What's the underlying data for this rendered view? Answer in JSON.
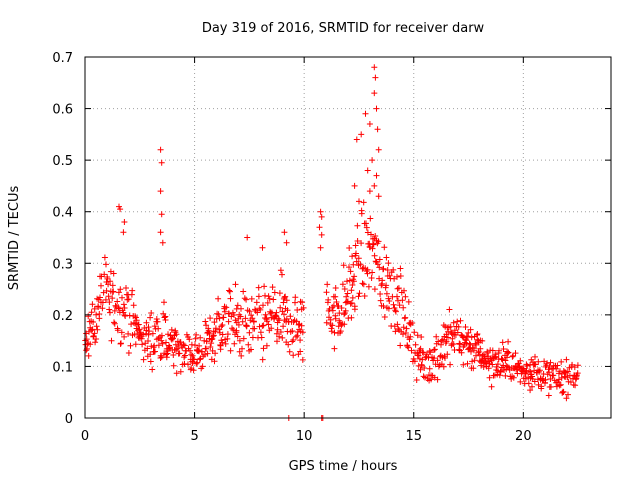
{
  "chart_data": {
    "type": "scatter",
    "title": "Day 319 of 2016, SRMTID for receiver darw",
    "xlabel": "GPS time / hours",
    "ylabel": "SRMTID / TECUs",
    "xlim": [
      0,
      24
    ],
    "ylim": [
      0,
      0.7
    ],
    "xticks": [
      0,
      5,
      10,
      15,
      20
    ],
    "xtick_labels": [
      "0",
      "5",
      "10",
      "15",
      "20"
    ],
    "yticks": [
      0,
      0.1,
      0.2,
      0.3,
      0.4,
      0.5,
      0.6,
      0.7
    ],
    "ytick_labels": [
      "0",
      "0.1",
      "0.2",
      "0.3",
      "0.4",
      "0.5",
      "0.6",
      "0.7"
    ],
    "grid": true,
    "marker": "+",
    "color": "#ff0000",
    "series": [
      {
        "name": "SRMTID",
        "profile_hours": [
          0.0,
          0.5,
          1.0,
          1.5,
          2.0,
          2.5,
          3.0,
          3.5,
          4.0,
          4.5,
          5.0,
          5.5,
          6.0,
          6.5,
          7.0,
          7.5,
          8.0,
          8.5,
          9.0,
          9.5,
          10.0,
          10.5,
          11.0,
          11.5,
          12.0,
          12.5,
          13.0,
          13.5,
          14.0,
          14.5,
          15.0,
          15.5,
          16.0,
          16.5,
          17.0,
          17.5,
          18.0,
          18.5,
          19.0,
          19.5,
          20.0,
          20.5,
          21.0,
          21.5,
          22.0,
          22.5
        ],
        "profile_median": [
          0.15,
          0.19,
          0.25,
          0.21,
          0.2,
          0.16,
          0.15,
          0.17,
          0.14,
          0.13,
          0.12,
          0.14,
          0.17,
          0.19,
          0.18,
          0.17,
          0.18,
          0.2,
          0.19,
          0.18,
          0.17,
          null,
          0.22,
          0.2,
          0.24,
          0.3,
          0.33,
          0.28,
          0.25,
          0.2,
          0.14,
          0.1,
          0.12,
          0.15,
          0.16,
          0.14,
          0.13,
          0.11,
          0.11,
          0.1,
          0.09,
          0.09,
          0.08,
          0.08,
          0.08,
          0.09
        ],
        "profile_spread": [
          0.04,
          0.06,
          0.07,
          0.06,
          0.06,
          0.05,
          0.05,
          0.06,
          0.05,
          0.04,
          0.04,
          0.05,
          0.06,
          0.07,
          0.07,
          0.06,
          0.07,
          0.07,
          0.07,
          0.07,
          0.06,
          null,
          0.06,
          0.06,
          0.07,
          0.08,
          0.09,
          0.08,
          0.07,
          0.06,
          0.05,
          0.04,
          0.05,
          0.05,
          0.05,
          0.04,
          0.04,
          0.04,
          0.04,
          0.03,
          0.03,
          0.03,
          0.03,
          0.03,
          0.03,
          0.03
        ],
        "outliers": [
          [
            1.55,
            0.41
          ],
          [
            1.6,
            0.405
          ],
          [
            1.8,
            0.38
          ],
          [
            1.75,
            0.36
          ],
          [
            3.45,
            0.52
          ],
          [
            3.5,
            0.495
          ],
          [
            3.45,
            0.44
          ],
          [
            3.5,
            0.395
          ],
          [
            3.45,
            0.36
          ],
          [
            3.55,
            0.34
          ],
          [
            10.75,
            0.4
          ],
          [
            10.8,
            0.39
          ],
          [
            10.7,
            0.37
          ],
          [
            10.8,
            0.355
          ],
          [
            10.75,
            0.33
          ],
          [
            12.4,
            0.54
          ],
          [
            12.6,
            0.55
          ],
          [
            12.8,
            0.59
          ],
          [
            13.0,
            0.57
          ],
          [
            13.2,
            0.68
          ],
          [
            13.25,
            0.66
          ],
          [
            13.2,
            0.63
          ],
          [
            13.3,
            0.6
          ],
          [
            13.35,
            0.56
          ],
          [
            13.4,
            0.52
          ],
          [
            13.1,
            0.5
          ],
          [
            13.3,
            0.47
          ],
          [
            12.9,
            0.48
          ],
          [
            12.5,
            0.42
          ],
          [
            13.4,
            0.43
          ],
          [
            13.0,
            0.44
          ],
          [
            12.3,
            0.45
          ],
          [
            13.2,
            0.45
          ],
          [
            9.1,
            0.36
          ],
          [
            9.2,
            0.34
          ],
          [
            7.4,
            0.35
          ],
          [
            8.1,
            0.33
          ],
          [
            9.3,
            0.0
          ],
          [
            10.8,
            0.0
          ],
          [
            10.85,
            0.0
          ]
        ]
      }
    ]
  }
}
